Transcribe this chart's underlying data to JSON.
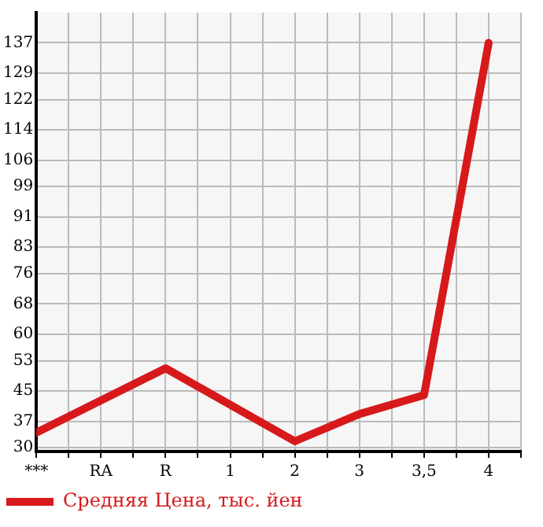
{
  "chart_data": {
    "type": "line",
    "categories": [
      "***",
      "RA",
      "R",
      "1",
      "2",
      "3",
      "3,5",
      "4"
    ],
    "series": [
      {
        "name": "Средняя Цена, тыс. йен",
        "color": "#d7191c",
        "values": [
          34,
          null,
          51,
          null,
          31.7,
          38.9,
          43.9,
          137
        ]
      }
    ],
    "ylim": [
      29,
      145
    ],
    "yticks": [
      30,
      37,
      45,
      53,
      60,
      68,
      76,
      83,
      91,
      99,
      106,
      114,
      122,
      129,
      137
    ],
    "grid": true,
    "legend": "bottom left",
    "marker": "none",
    "line_style": "solid"
  }
}
